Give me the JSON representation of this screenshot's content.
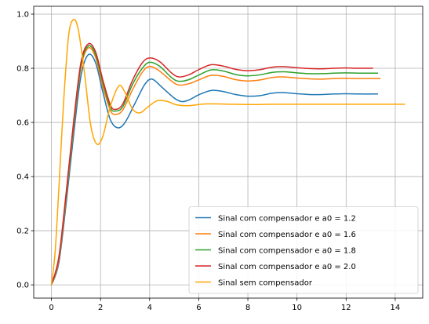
{
  "chart_data": {
    "type": "line",
    "title": "",
    "xlabel": "",
    "ylabel": "",
    "xlim": [
      -0.72,
      15.12
    ],
    "ylim": [
      -0.049,
      1.029
    ],
    "xticks": [
      0,
      2,
      4,
      6,
      8,
      10,
      12,
      14
    ],
    "yticks": [
      0.0,
      0.2,
      0.4,
      0.6,
      0.8,
      1.0
    ],
    "xtick_labels": [
      "0",
      "2",
      "4",
      "6",
      "8",
      "10",
      "12",
      "14"
    ],
    "ytick_labels": [
      "0.0",
      "0.2",
      "0.4",
      "0.6",
      "0.8",
      "1.0"
    ],
    "grid": true,
    "legend_position": "lower-right",
    "series": [
      {
        "name": "Sinal com compensador e a0 = 1.2",
        "color": "#1f77b4",
        "points": [
          [
            0,
            0
          ],
          [
            0.3,
            0.08
          ],
          [
            0.6,
            0.3
          ],
          [
            0.9,
            0.55
          ],
          [
            1.2,
            0.77
          ],
          [
            1.5,
            0.85
          ],
          [
            1.8,
            0.82
          ],
          [
            2.1,
            0.71
          ],
          [
            2.4,
            0.61
          ],
          [
            2.7,
            0.58
          ],
          [
            3.0,
            0.6
          ],
          [
            3.4,
            0.67
          ],
          [
            3.8,
            0.74
          ],
          [
            4.1,
            0.76
          ],
          [
            4.5,
            0.73
          ],
          [
            5.0,
            0.69
          ],
          [
            5.3,
            0.677
          ],
          [
            5.6,
            0.683
          ],
          [
            6.0,
            0.702
          ],
          [
            6.5,
            0.718
          ],
          [
            7.0,
            0.714
          ],
          [
            7.5,
            0.703
          ],
          [
            8.0,
            0.697
          ],
          [
            8.5,
            0.699
          ],
          [
            9.0,
            0.708
          ],
          [
            9.5,
            0.71
          ],
          [
            10.0,
            0.706
          ],
          [
            10.5,
            0.703
          ],
          [
            11.0,
            0.703
          ],
          [
            11.5,
            0.705
          ],
          [
            12.0,
            0.706
          ],
          [
            12.5,
            0.705
          ],
          [
            13.3,
            0.705
          ]
        ]
      },
      {
        "name": "Sinal com compensador e a0 = 1.6",
        "color": "#ff7f0e",
        "points": [
          [
            0,
            0
          ],
          [
            0.3,
            0.09
          ],
          [
            0.6,
            0.32
          ],
          [
            0.9,
            0.58
          ],
          [
            1.2,
            0.8
          ],
          [
            1.5,
            0.875
          ],
          [
            1.8,
            0.84
          ],
          [
            2.1,
            0.73
          ],
          [
            2.4,
            0.645
          ],
          [
            2.6,
            0.63
          ],
          [
            2.9,
            0.645
          ],
          [
            3.3,
            0.72
          ],
          [
            3.7,
            0.785
          ],
          [
            4.0,
            0.807
          ],
          [
            4.4,
            0.79
          ],
          [
            4.9,
            0.752
          ],
          [
            5.2,
            0.738
          ],
          [
            5.6,
            0.743
          ],
          [
            6.0,
            0.757
          ],
          [
            6.5,
            0.774
          ],
          [
            7.0,
            0.77
          ],
          [
            7.5,
            0.758
          ],
          [
            8.0,
            0.753
          ],
          [
            8.5,
            0.757
          ],
          [
            9.0,
            0.766
          ],
          [
            9.5,
            0.768
          ],
          [
            10.0,
            0.764
          ],
          [
            10.5,
            0.761
          ],
          [
            11.0,
            0.76
          ],
          [
            11.5,
            0.762
          ],
          [
            12.0,
            0.763
          ],
          [
            12.5,
            0.762
          ],
          [
            13.4,
            0.762
          ]
        ]
      },
      {
        "name": "Sinal com compensador e a0 = 1.8",
        "color": "#2ca02c",
        "points": [
          [
            0,
            0
          ],
          [
            0.3,
            0.1
          ],
          [
            0.6,
            0.33
          ],
          [
            0.9,
            0.59
          ],
          [
            1.2,
            0.81
          ],
          [
            1.5,
            0.882
          ],
          [
            1.8,
            0.85
          ],
          [
            2.1,
            0.745
          ],
          [
            2.4,
            0.655
          ],
          [
            2.6,
            0.642
          ],
          [
            2.9,
            0.657
          ],
          [
            3.3,
            0.74
          ],
          [
            3.7,
            0.8
          ],
          [
            4.0,
            0.822
          ],
          [
            4.4,
            0.808
          ],
          [
            4.9,
            0.765
          ],
          [
            5.2,
            0.752
          ],
          [
            5.6,
            0.758
          ],
          [
            6.0,
            0.775
          ],
          [
            6.5,
            0.794
          ],
          [
            7.0,
            0.79
          ],
          [
            7.5,
            0.777
          ],
          [
            8.0,
            0.772
          ],
          [
            8.5,
            0.776
          ],
          [
            9.0,
            0.785
          ],
          [
            9.5,
            0.787
          ],
          [
            10.0,
            0.783
          ],
          [
            10.5,
            0.78
          ],
          [
            11.0,
            0.78
          ],
          [
            11.5,
            0.782
          ],
          [
            12.0,
            0.783
          ],
          [
            12.5,
            0.782
          ],
          [
            13.3,
            0.782
          ]
        ]
      },
      {
        "name": "Sinal com compensador e a0 = 2.0",
        "color": "#d62728",
        "points": [
          [
            0,
            0
          ],
          [
            0.3,
            0.1
          ],
          [
            0.6,
            0.34
          ],
          [
            0.9,
            0.6
          ],
          [
            1.2,
            0.82
          ],
          [
            1.5,
            0.89
          ],
          [
            1.8,
            0.86
          ],
          [
            2.1,
            0.755
          ],
          [
            2.4,
            0.665
          ],
          [
            2.6,
            0.648
          ],
          [
            2.9,
            0.667
          ],
          [
            3.3,
            0.755
          ],
          [
            3.7,
            0.82
          ],
          [
            4.0,
            0.838
          ],
          [
            4.4,
            0.825
          ],
          [
            4.9,
            0.782
          ],
          [
            5.2,
            0.768
          ],
          [
            5.6,
            0.776
          ],
          [
            6.0,
            0.795
          ],
          [
            6.5,
            0.813
          ],
          [
            7.0,
            0.808
          ],
          [
            7.5,
            0.796
          ],
          [
            8.0,
            0.791
          ],
          [
            8.5,
            0.795
          ],
          [
            9.0,
            0.804
          ],
          [
            9.5,
            0.806
          ],
          [
            10.0,
            0.802
          ],
          [
            10.5,
            0.799
          ],
          [
            11.0,
            0.798
          ],
          [
            11.5,
            0.8
          ],
          [
            12.0,
            0.801
          ],
          [
            12.5,
            0.8
          ],
          [
            13.1,
            0.8
          ]
        ]
      },
      {
        "name": "Sinal sem compensador",
        "color": "#ffa500",
        "points": [
          [
            0,
            0
          ],
          [
            0.15,
            0.12
          ],
          [
            0.3,
            0.35
          ],
          [
            0.5,
            0.68
          ],
          [
            0.7,
            0.92
          ],
          [
            0.9,
            0.98
          ],
          [
            1.1,
            0.94
          ],
          [
            1.35,
            0.78
          ],
          [
            1.6,
            0.59
          ],
          [
            1.85,
            0.52
          ],
          [
            2.1,
            0.55
          ],
          [
            2.4,
            0.66
          ],
          [
            2.75,
            0.735
          ],
          [
            3.0,
            0.71
          ],
          [
            3.3,
            0.65
          ],
          [
            3.6,
            0.635
          ],
          [
            3.9,
            0.655
          ],
          [
            4.3,
            0.68
          ],
          [
            4.7,
            0.678
          ],
          [
            5.1,
            0.665
          ],
          [
            5.6,
            0.662
          ],
          [
            6.2,
            0.668
          ],
          [
            7.0,
            0.668
          ],
          [
            8.0,
            0.666
          ],
          [
            9.0,
            0.667
          ],
          [
            10.0,
            0.667
          ],
          [
            11.0,
            0.667
          ],
          [
            12.0,
            0.667
          ],
          [
            13.0,
            0.667
          ],
          [
            14.4,
            0.667
          ]
        ]
      }
    ]
  }
}
